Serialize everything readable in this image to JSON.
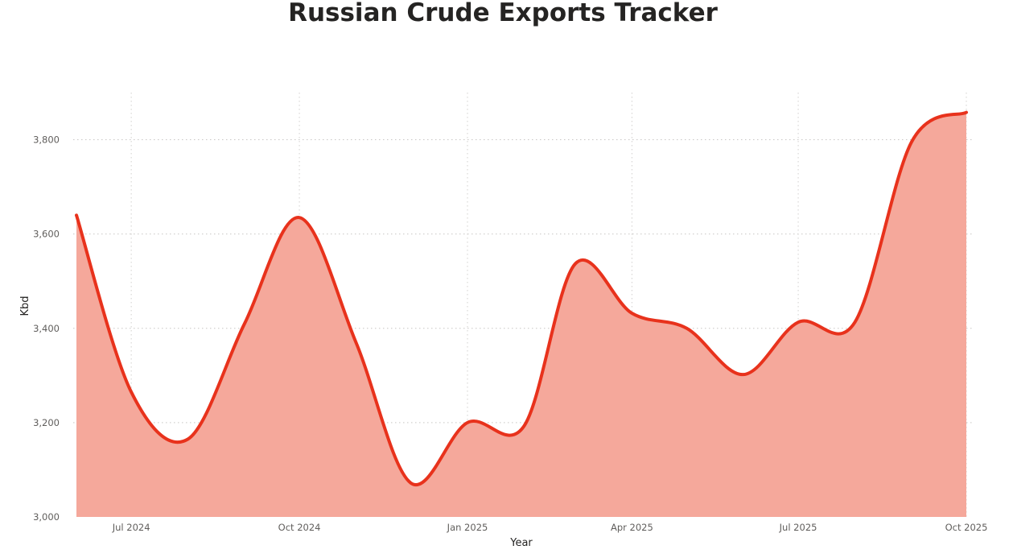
{
  "chart_data": {
    "type": "area",
    "title": "Russian Crude Exports Tracker",
    "xlabel": "Year",
    "ylabel": "Kbd",
    "ylim": [
      3000,
      3900
    ],
    "yticks": [
      {
        "value": 3000,
        "label": "3,000"
      },
      {
        "value": 3200,
        "label": "3,200"
      },
      {
        "value": 3400,
        "label": "3,400"
      },
      {
        "value": 3600,
        "label": "3,600"
      },
      {
        "value": 3800,
        "label": "3,800"
      }
    ],
    "xlim": [
      "2024-06-01",
      "2025-10-01"
    ],
    "xticks": [
      {
        "date": "2024-07-01",
        "label": "Jul 2024"
      },
      {
        "date": "2024-10-01",
        "label": "Oct 2024"
      },
      {
        "date": "2025-01-01",
        "label": "Jan 2025"
      },
      {
        "date": "2025-04-01",
        "label": "Apr 2025"
      },
      {
        "date": "2025-07-01",
        "label": "Jul 2025"
      },
      {
        "date": "2025-10-01",
        "label": "Oct 2025"
      }
    ],
    "grid": true,
    "series": [
      {
        "line_color": "#e8321c",
        "fill_color": "#f5a89b",
        "points": [
          {
            "date": "2024-06-01",
            "value": 3640
          },
          {
            "date": "2024-07-01",
            "value": 3265
          },
          {
            "date": "2024-08-01",
            "value": 3165
          },
          {
            "date": "2024-09-01",
            "value": 3410
          },
          {
            "date": "2024-10-01",
            "value": 3635
          },
          {
            "date": "2024-11-01",
            "value": 3370
          },
          {
            "date": "2024-12-01",
            "value": 3072
          },
          {
            "date": "2025-01-01",
            "value": 3200
          },
          {
            "date": "2025-02-01",
            "value": 3193
          },
          {
            "date": "2025-03-01",
            "value": 3537
          },
          {
            "date": "2025-04-01",
            "value": 3432
          },
          {
            "date": "2025-05-01",
            "value": 3400
          },
          {
            "date": "2025-06-01",
            "value": 3302
          },
          {
            "date": "2025-07-01",
            "value": 3413
          },
          {
            "date": "2025-08-01",
            "value": 3413
          },
          {
            "date": "2025-09-01",
            "value": 3795
          },
          {
            "date": "2025-10-01",
            "value": 3858
          }
        ]
      }
    ]
  }
}
